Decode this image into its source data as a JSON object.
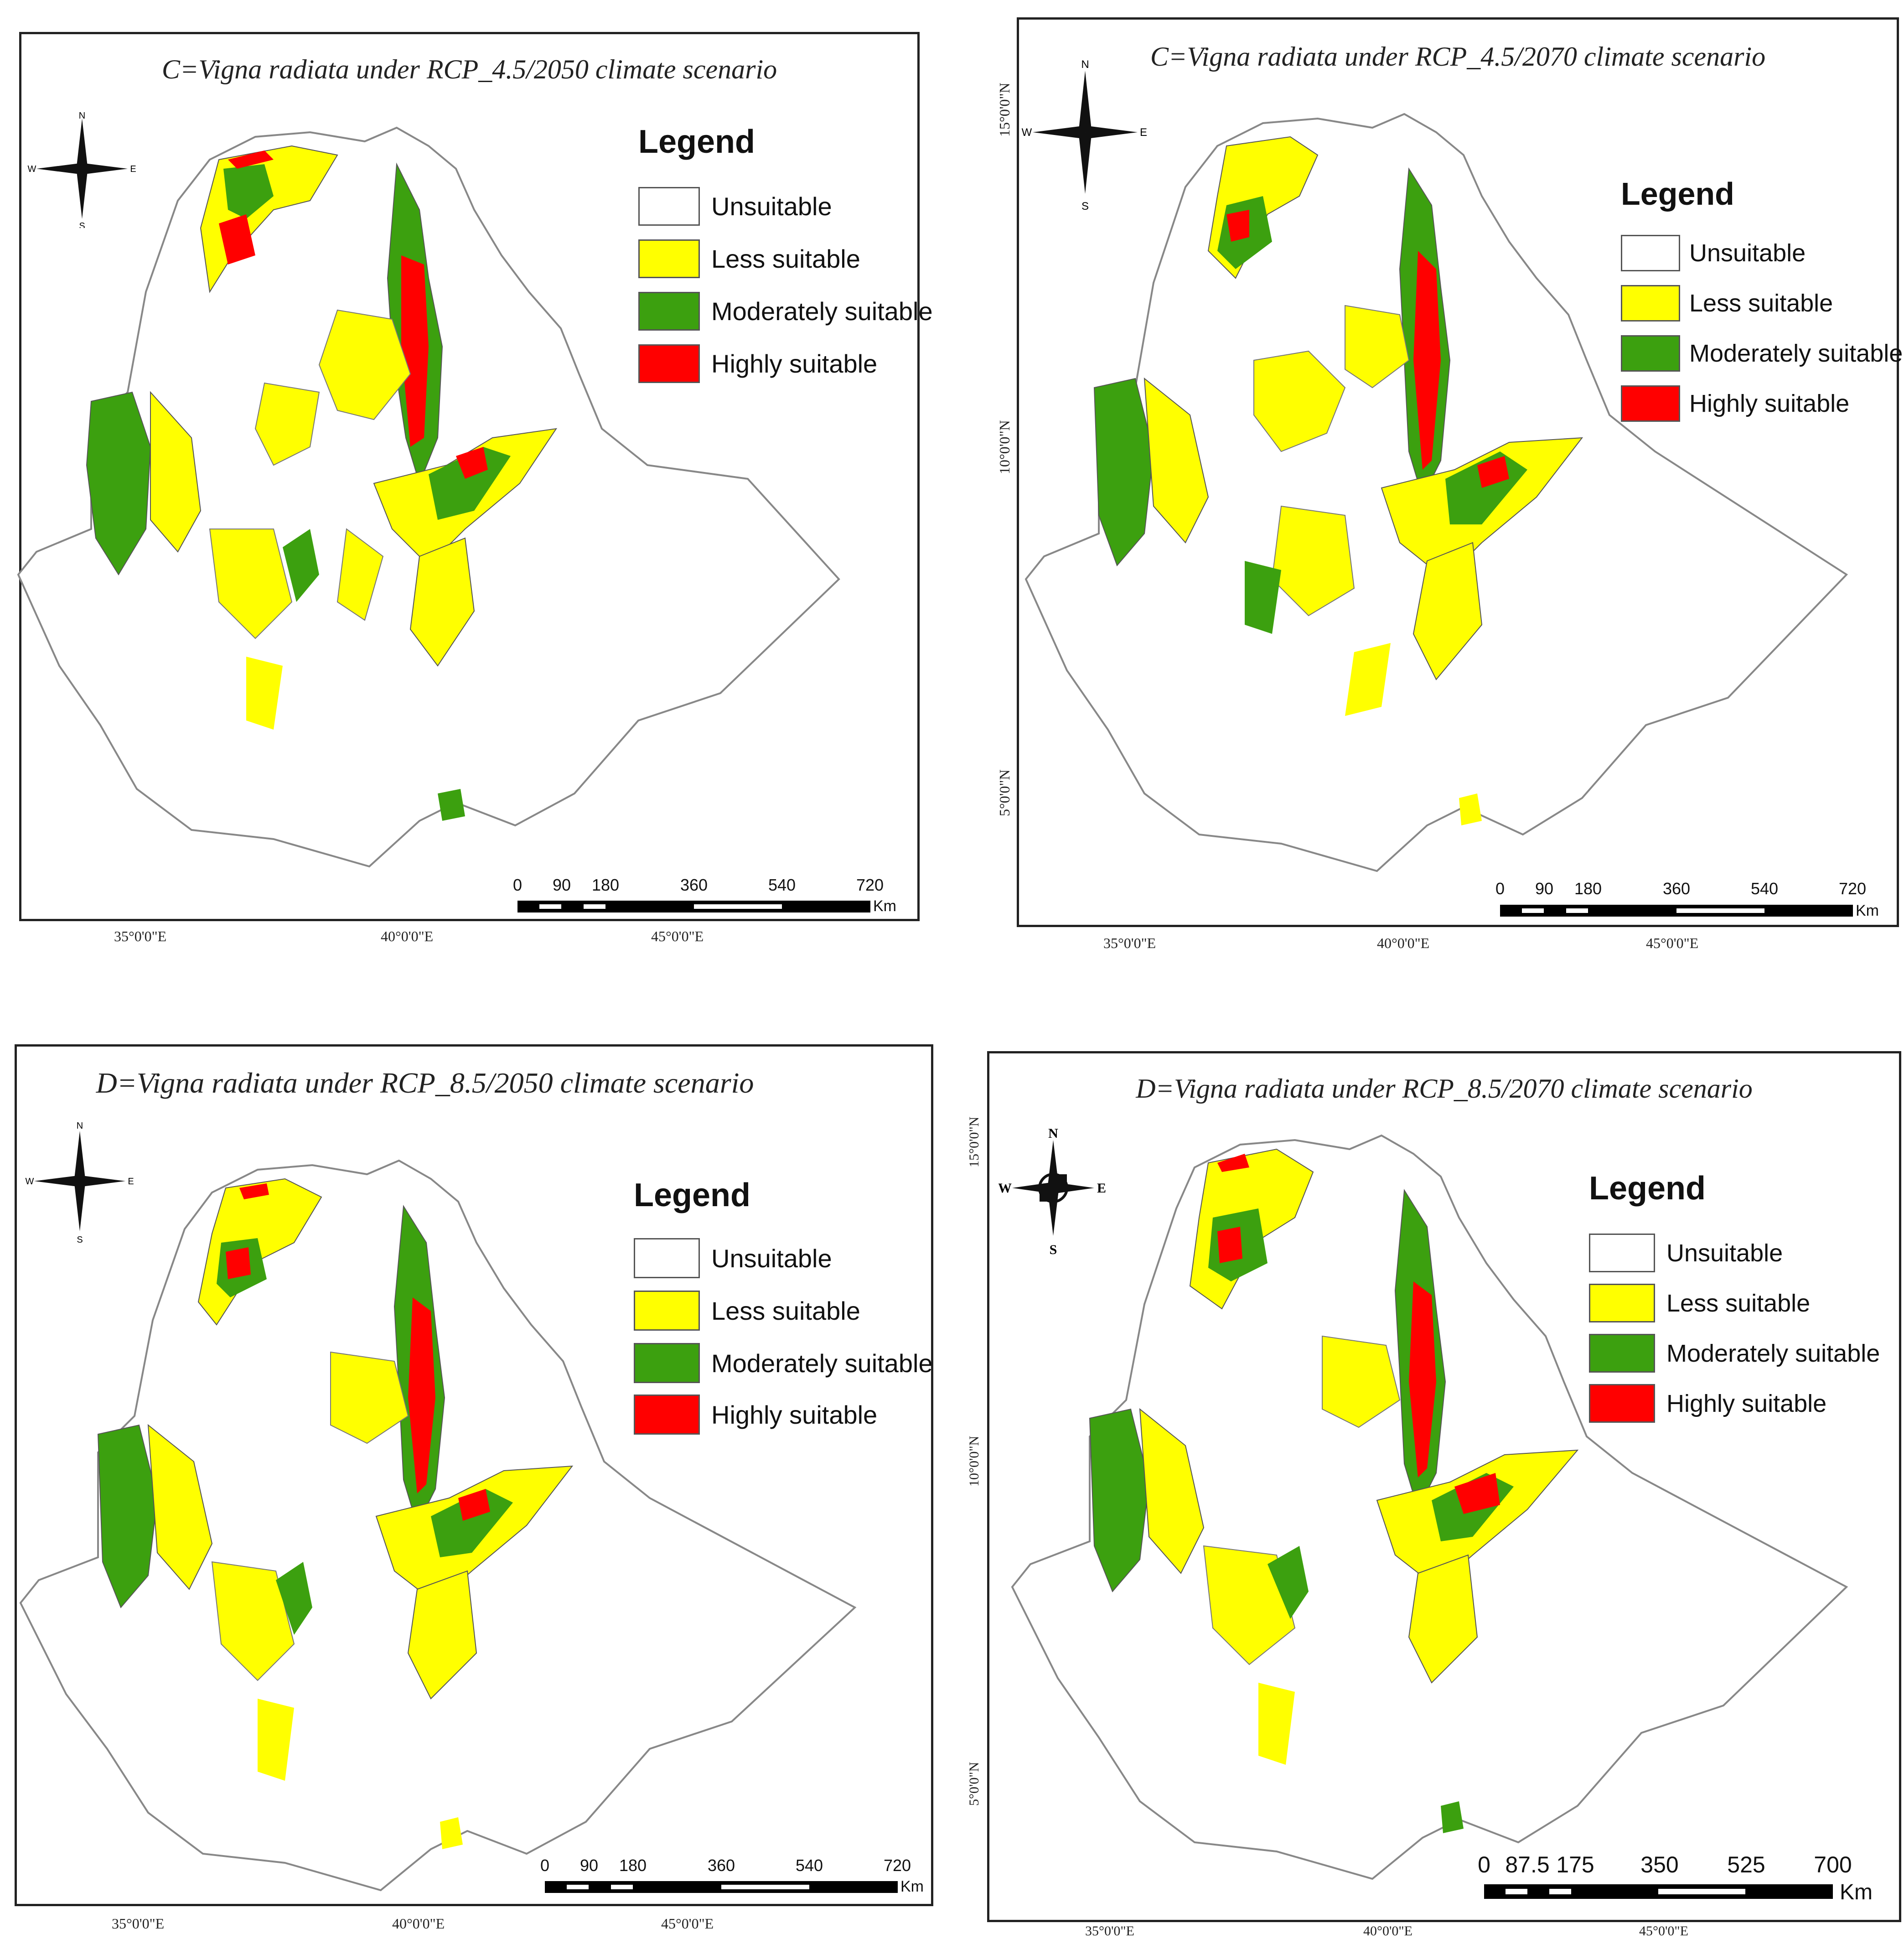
{
  "panels": [
    {
      "title": "C=Vigna radiata under RCP_4.5/2050 climate scenario",
      "legend": {
        "title": "Legend",
        "items": [
          {
            "label": "Unsuitable",
            "color": "#ffffff"
          },
          {
            "label": "Less suitable",
            "color": "#ffff00"
          },
          {
            "label": "Moderately suitable",
            "color": "#3ca00f"
          },
          {
            "label": "Highly suitable",
            "color": "#ff0000"
          }
        ]
      },
      "compass": {
        "n": "N",
        "s": "S",
        "e": "E",
        "w": "W"
      },
      "scale": {
        "ticks": [
          "0",
          "90",
          "180",
          "360",
          "540",
          "720"
        ],
        "unit": "Km"
      },
      "lon_labels": [
        "35°0'0\"E",
        "40°0'0\"E",
        "45°0'0\"E"
      ],
      "lat_labels": []
    },
    {
      "title": "C=Vigna radiata under RCP_4.5/2070 climate scenario",
      "legend": {
        "title": "Legend",
        "items": [
          {
            "label": "Unsuitable",
            "color": "#ffffff"
          },
          {
            "label": "Less suitable",
            "color": "#ffff00"
          },
          {
            "label": "Moderately suitable",
            "color": "#3ca00f"
          },
          {
            "label": "Highly suitable",
            "color": "#ff0000"
          }
        ]
      },
      "compass": {
        "n": "N",
        "s": "S",
        "e": "E",
        "w": "W"
      },
      "scale": {
        "ticks": [
          "0",
          "90",
          "180",
          "360",
          "540",
          "720"
        ],
        "unit": "Km"
      },
      "lon_labels": [
        "35°0'0\"E",
        "40°0'0\"E",
        "45°0'0\"E"
      ],
      "lat_labels": [
        "15°0'0\"N",
        "10°0'0\"N",
        "5°0'0\"N"
      ]
    },
    {
      "title": "D=Vigna radiata under RCP_8.5/2050 climate scenario",
      "legend": {
        "title": "Legend",
        "items": [
          {
            "label": "Unsuitable",
            "color": "#ffffff"
          },
          {
            "label": "Less suitable",
            "color": "#ffff00"
          },
          {
            "label": "Moderately suitable",
            "color": "#3ca00f"
          },
          {
            "label": "Highly suitable",
            "color": "#ff0000"
          }
        ]
      },
      "compass": {
        "n": "N",
        "s": "S",
        "e": "E",
        "w": "W"
      },
      "scale": {
        "ticks": [
          "0",
          "90",
          "180",
          "360",
          "540",
          "720"
        ],
        "unit": "Km"
      },
      "lon_labels": [
        "35°0'0\"E",
        "40°0'0\"E",
        "45°0'0\"E"
      ],
      "lat_labels": []
    },
    {
      "title": "D=Vigna radiata under RCP_8.5/2070 climate scenario",
      "legend": {
        "title": "Legend",
        "items": [
          {
            "label": "Unsuitable",
            "color": "#ffffff"
          },
          {
            "label": "Less suitable",
            "color": "#ffff00"
          },
          {
            "label": "Moderately suitable",
            "color": "#3ca00f"
          },
          {
            "label": "Highly suitable",
            "color": "#ff0000"
          }
        ]
      },
      "compass": {
        "n": "N",
        "s": "S",
        "e": "E",
        "w": "W"
      },
      "scale": {
        "ticks": [
          "0",
          "87.5",
          "175",
          "350",
          "525",
          "700"
        ],
        "unit": "Km"
      },
      "lon_labels": [
        "35°0'0\"E",
        "40°0'0\"E",
        "45°0'0\"E"
      ],
      "lat_labels": [
        "15°0'0\"N",
        "10°0'0\"N",
        "5°0'0\"N"
      ]
    }
  ]
}
